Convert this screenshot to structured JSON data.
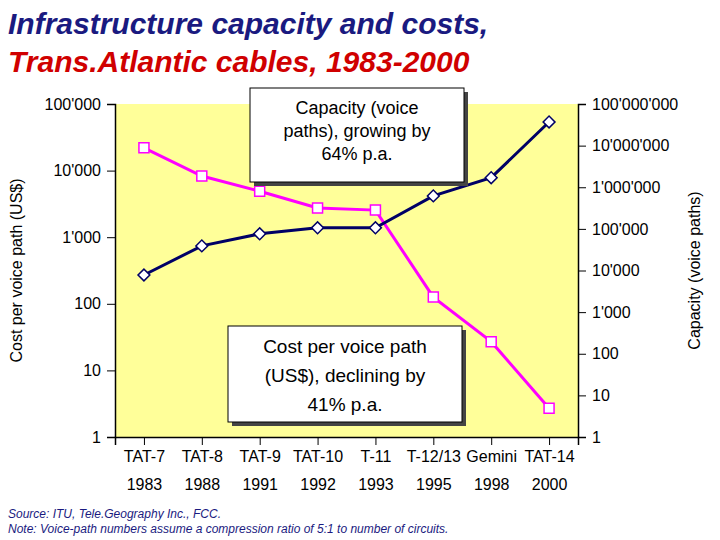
{
  "chart_data": {
    "type": "line",
    "title": "Infrastructure capacity and costs,",
    "subtitle": "Trans.Atlantic cables, 1983-2000",
    "log": true,
    "grid": false,
    "categories": [
      "TAT-7\n1983",
      "TAT-8\n1988",
      "TAT-9\n1991",
      "TAT-10\n1992",
      "T-11\n1993",
      "T-12/13\n1995",
      "Gemini\n1998",
      "TAT-14\n2000"
    ],
    "ylabel": "Cost per voice path (US$)",
    "y2label": "Capacity (voice paths)",
    "ylim": [
      1,
      100000
    ],
    "yticks": [
      1,
      10,
      100,
      {
        "value": 1000,
        "label": "1'000"
      },
      {
        "value": 10000,
        "label": "10'000"
      },
      {
        "value": 100000,
        "label": "100'000"
      }
    ],
    "y2lim": [
      1,
      100000000
    ],
    "y2ticks": [
      1,
      10,
      100,
      {
        "value": 1000,
        "label": "1'000"
      },
      {
        "value": 10000,
        "label": "10'000"
      },
      {
        "value": 100000,
        "label": "100'000"
      },
      {
        "value": 1000000,
        "label": "1'000'000"
      },
      {
        "value": 10000000,
        "label": "10'000'000"
      },
      {
        "value": 100000000,
        "label": "100'000'000"
      }
    ],
    "series": [
      {
        "color": "#ff00ff",
        "marker": "square",
        "values": [
          22000,
          8300,
          4900,
          2750,
          2550,
          126,
          27,
          2.7
        ]
      },
      {
        "color": "#000066",
        "marker": "diamond",
        "axis": "y2",
        "values": [
          7800,
          39000,
          76000,
          106000,
          106000,
          620000,
          1700000,
          37000000
        ]
      }
    ],
    "annotations": [
      {
        "text": "Capacity (voice\npaths), growing by\n64% p.a."
      },
      {
        "text": "Cost per voice path\n(US$), declining by\n41% p.a."
      }
    ],
    "source": "Source: ITU, Tele.Geography Inc., FCC.",
    "note": "Note: Voice-path numbers assume a compression ratio of 5:1 to number of circuits."
  }
}
